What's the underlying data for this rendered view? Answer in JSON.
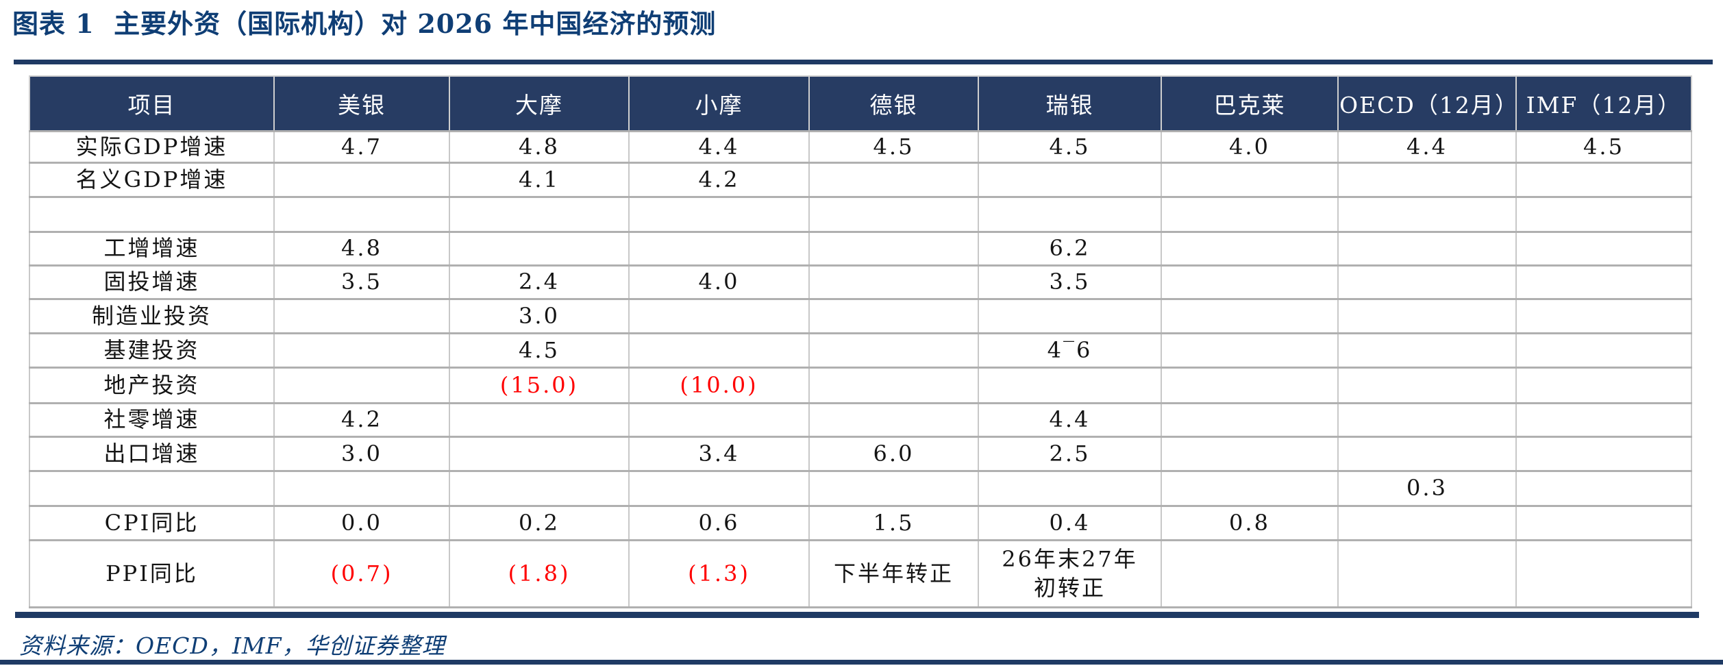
{
  "figure": {
    "title": "图表 1  主要外资（国际机构）对 2026 年中国经济的预测",
    "source": "资料来源：OECD，IMF，华创证券整理"
  },
  "colors": {
    "navy": "#1f3a64",
    "header_bg": "#273c63",
    "header_text": "#ffffff",
    "title_text": "#0f3e75",
    "negative_red": "#ff0000",
    "grid_horizontal": "#b0b0b0",
    "grid_vertical": "#c8c8c8"
  },
  "chart_data": {
    "type": "table",
    "columns": [
      "项目",
      "美银",
      "大摩",
      "小摩",
      "德银",
      "瑞银",
      "巴克莱",
      "OECD（12月）",
      "IMF（12月）"
    ],
    "rows": [
      {
        "label": "实际GDP增速",
        "values": [
          "4.7",
          "4.8",
          "4.4",
          "4.5",
          "4.5",
          "4.0",
          "4.4",
          "4.5"
        ],
        "red": []
      },
      {
        "label": "名义GDP增速",
        "values": [
          "",
          "4.1",
          "4.2",
          "",
          "",
          "",
          "",
          ""
        ],
        "red": []
      },
      {
        "label": "",
        "values": [
          "",
          "",
          "",
          "",
          "",
          "",
          "",
          ""
        ],
        "red": []
      },
      {
        "label": "工增增速",
        "values": [
          "4.8",
          "",
          "",
          "",
          "6.2",
          "",
          "",
          ""
        ],
        "red": []
      },
      {
        "label": "固投增速",
        "values": [
          "3.5",
          "2.4",
          "4.0",
          "",
          "3.5",
          "",
          "",
          ""
        ],
        "red": []
      },
      {
        "label": "制造业投资",
        "values": [
          "",
          "3.0",
          "",
          "",
          "",
          "",
          "",
          ""
        ],
        "red": []
      },
      {
        "label": "基建投资",
        "values": [
          "",
          "4.5",
          "",
          "",
          "4‾6",
          "",
          "",
          ""
        ],
        "red": []
      },
      {
        "label": "地产投资",
        "values": [
          "",
          "(15.0)",
          "(10.0)",
          "",
          "",
          "",
          "",
          ""
        ],
        "red": [
          1,
          2
        ]
      },
      {
        "label": "社零增速",
        "values": [
          "4.2",
          "",
          "",
          "",
          "4.4",
          "",
          "",
          ""
        ],
        "red": []
      },
      {
        "label": "出口增速",
        "values": [
          "3.0",
          "",
          "3.4",
          "6.0",
          "2.5",
          "",
          "",
          ""
        ],
        "red": []
      },
      {
        "label": "",
        "values": [
          "",
          "",
          "",
          "",
          "",
          "",
          "0.3",
          ""
        ],
        "red": []
      },
      {
        "label": "CPI同比",
        "values": [
          "0.0",
          "0.2",
          "0.6",
          "1.5",
          "0.4",
          "0.8",
          "",
          ""
        ],
        "red": []
      },
      {
        "label": "PPI同比",
        "values": [
          "(0.7)",
          "(1.8)",
          "(1.3)",
          "下半年转正",
          "26年末27年初转正",
          "",
          "",
          ""
        ],
        "red": [
          0,
          1,
          2
        ]
      }
    ]
  }
}
